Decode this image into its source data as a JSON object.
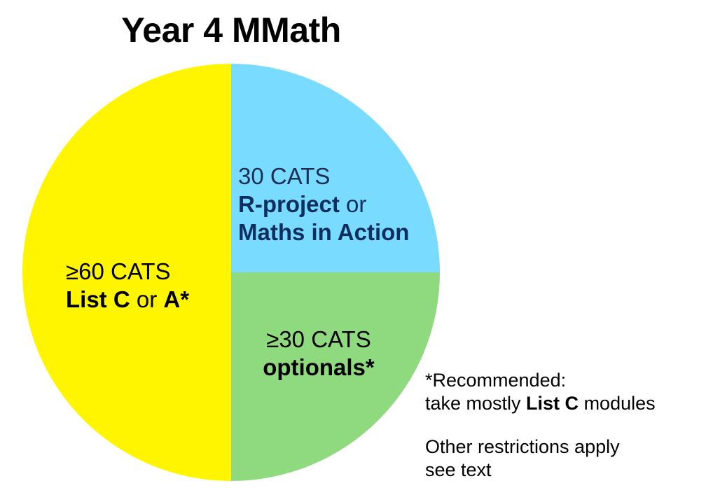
{
  "chart_data": {
    "type": "pie",
    "title": "Year 4 MMath",
    "unit": "CATS",
    "slices": [
      {
        "value": 60,
        "color": "#FFF500",
        "label_line1": "≥60 CATS",
        "bold_a": "List C",
        "connector": " or ",
        "bold_b": "A*"
      },
      {
        "value": 30,
        "color": "#79DBFF",
        "label_line1": "30 CATS",
        "bold_a": "R-project",
        "connector": " or",
        "bold_b": "Maths in Action"
      },
      {
        "value": 30,
        "color": "#8FDA7F",
        "label_line1": "≥30 CATS",
        "bold_b": "optionals*"
      }
    ]
  },
  "footnote": {
    "line1": "*Recommended:",
    "line2_pre": "take mostly ",
    "line2_bold": "List C",
    "line2_post": " modules",
    "line3": "Other restrictions apply",
    "line4": "see text"
  }
}
